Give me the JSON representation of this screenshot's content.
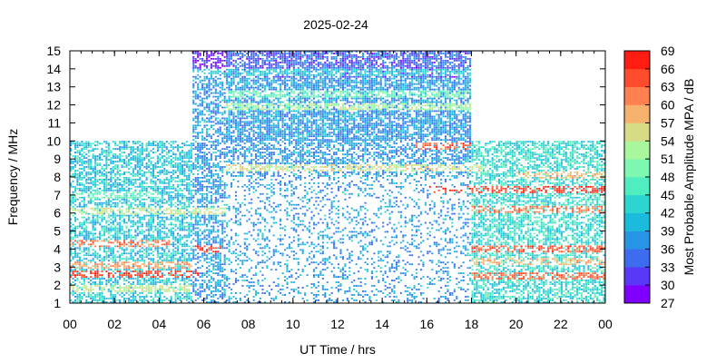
{
  "chart_data": {
    "type": "heatmap",
    "title": "2025-02-24",
    "xlabel": "UT Time / hrs",
    "ylabel": "Frequency / MHz",
    "colorbar_label": "Most Probable Amplitude MPA / dB",
    "x_range": [
      0,
      24
    ],
    "y_range": [
      1,
      15
    ],
    "x_ticks": [
      "00",
      "02",
      "04",
      "06",
      "08",
      "10",
      "12",
      "14",
      "16",
      "18",
      "20",
      "22",
      "00"
    ],
    "y_ticks": [
      "1",
      "2",
      "3",
      "4",
      "5",
      "6",
      "7",
      "8",
      "9",
      "10",
      "11",
      "12",
      "13",
      "14",
      "15"
    ],
    "colorbar_range": [
      27,
      69
    ],
    "colorbar_ticks": [
      "27",
      "30",
      "33",
      "36",
      "39",
      "42",
      "45",
      "48",
      "51",
      "54",
      "57",
      "60",
      "63",
      "66",
      "69"
    ],
    "colorbar_colors": [
      "#7f00ff",
      "#5a38f8",
      "#3d6cf1",
      "#2894e6",
      "#1abbdd",
      "#2dd5d0",
      "#50edc1",
      "#7ef7b1",
      "#a8f79d",
      "#d7db85",
      "#f6b16c",
      "#ff8050",
      "#ff4c2c",
      "#ff1c10"
    ],
    "grid": false,
    "legend": "colorbar-right",
    "data_regions": [
      {
        "t_start": 0.0,
        "t_end": 5.5,
        "f_min": 1.0,
        "f_max": 10.0,
        "typical_mpa": 42
      },
      {
        "t_start": 5.5,
        "t_end": 7.0,
        "f_min": 1.0,
        "f_max": 15.0,
        "typical_mpa": 38
      },
      {
        "t_start": 7.0,
        "t_end": 18.0,
        "f_min": 1.0,
        "f_max": 15.0,
        "typical_mpa": 38
      },
      {
        "t_start": 18.0,
        "t_end": 24.0,
        "f_min": 1.0,
        "f_max": 10.0,
        "typical_mpa": 44
      }
    ],
    "bands": [
      {
        "t_start": 0.0,
        "t_end": 5.8,
        "freq": 2.6,
        "mpa": 66
      },
      {
        "t_start": 0.0,
        "t_end": 5.5,
        "freq": 3.1,
        "mpa": 60
      },
      {
        "t_start": 0.0,
        "t_end": 4.5,
        "freq": 4.3,
        "mpa": 62
      },
      {
        "t_start": 5.6,
        "t_end": 6.8,
        "freq": 4.0,
        "mpa": 66
      },
      {
        "t_start": 0.0,
        "t_end": 5.5,
        "freq": 1.8,
        "mpa": 54
      },
      {
        "t_start": 7.0,
        "t_end": 18.5,
        "freq": 8.5,
        "mpa": 55
      },
      {
        "t_start": 15.5,
        "t_end": 18.0,
        "freq": 9.7,
        "mpa": 64
      },
      {
        "t_start": 16.0,
        "t_end": 24.0,
        "freq": 7.3,
        "mpa": 66
      },
      {
        "t_start": 18.0,
        "t_end": 24.0,
        "freq": 6.2,
        "mpa": 62
      },
      {
        "t_start": 18.0,
        "t_end": 24.0,
        "freq": 4.0,
        "mpa": 64
      },
      {
        "t_start": 18.0,
        "t_end": 24.0,
        "freq": 2.5,
        "mpa": 63
      },
      {
        "t_start": 18.0,
        "t_end": 24.0,
        "freq": 3.3,
        "mpa": 58
      },
      {
        "t_start": 20.0,
        "t_end": 24.0,
        "freq": 8.1,
        "mpa": 58
      },
      {
        "t_start": 5.5,
        "t_end": 18.0,
        "freq": 13.8,
        "mpa": 42
      },
      {
        "t_start": 7.0,
        "t_end": 18.0,
        "freq": 12.6,
        "mpa": 48
      },
      {
        "t_start": 7.0,
        "t_end": 18.0,
        "freq": 11.9,
        "mpa": 52
      },
      {
        "t_start": 0.0,
        "t_end": 7.0,
        "freq": 6.1,
        "mpa": 54
      },
      {
        "t_start": 0.0,
        "t_end": 4.0,
        "freq": 7.0,
        "mpa": 48
      }
    ]
  }
}
